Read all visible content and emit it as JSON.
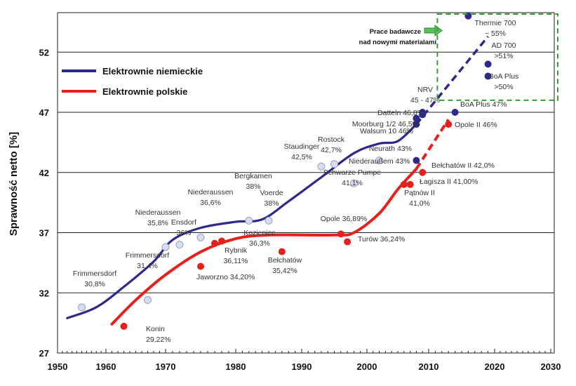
{
  "chart_data": {
    "type": "line",
    "title": "",
    "xlabel": "",
    "ylabel": "Sprawność netto [%]",
    "xlim": [
      1950,
      2030
    ],
    "ylim": [
      27,
      57
    ],
    "xticks": [
      1950,
      1960,
      1970,
      1980,
      1990,
      2000,
      2010,
      2020,
      2030
    ],
    "yticks": [
      27,
      32,
      37,
      42,
      47,
      52
    ],
    "grid": "horizontal",
    "legend_position": "top-left",
    "colors": {
      "german": "#2e2a8a",
      "polish": "#e8201c",
      "german_light_point": "#d8dcef",
      "research_box": "#3a9a3a"
    },
    "series": [
      {
        "name": "Elektrownie niemieckie",
        "curve": [
          [
            1952,
            29.9
          ],
          [
            1958,
            30.8
          ],
          [
            1963,
            32.5
          ],
          [
            1968,
            34.6
          ],
          [
            1971,
            36.4
          ],
          [
            1975,
            37.4
          ],
          [
            1980,
            37.9
          ],
          [
            1984,
            38.1
          ],
          [
            1988,
            39.6
          ],
          [
            1993,
            41.6
          ],
          [
            1998,
            43.6
          ],
          [
            2002,
            44.4
          ],
          [
            2005,
            44.6
          ],
          [
            2008,
            46.0
          ]
        ],
        "forecast": [
          [
            2008,
            46.0
          ],
          [
            2019,
            53.3
          ]
        ],
        "points": [
          {
            "year": 1955,
            "value": 30.8,
            "label": [
              "Frimmersdorf",
              "30,8%"
            ],
            "future": false
          },
          {
            "year": 1967,
            "value": 31.4,
            "label": [
              "Frimmersdorf",
              "31,4%"
            ],
            "future": false
          },
          {
            "year": 1970,
            "value": 35.8,
            "label": [
              "Niederaussen",
              "35,8%"
            ],
            "future": false
          },
          {
            "year": 1972,
            "value": 36.0,
            "label": [
              "Ensdorf",
              "36%"
            ],
            "future": false
          },
          {
            "year": 1975,
            "value": 36.6,
            "label": [
              "Niederaussen",
              "36,6%"
            ],
            "future": false
          },
          {
            "year": 1982,
            "value": 38.0,
            "label": [
              "Bergkamen",
              "38%"
            ],
            "future": false
          },
          {
            "year": 1985,
            "value": 38.0,
            "label": [
              "Voerde",
              "38%"
            ],
            "future": false
          },
          {
            "year": 1993,
            "value": 42.5,
            "label": [
              "Staudinger",
              "42,5%"
            ],
            "future": false
          },
          {
            "year": 1995,
            "value": 42.7,
            "label": [
              "Rostock",
              "42,7%"
            ],
            "future": false
          },
          {
            "year": 2002,
            "value": 43.0,
            "label": [
              "Niederaußem 43%"
            ],
            "future": false
          },
          {
            "year": 1998,
            "value": 41.1,
            "label": [
              "Schwarze Pumpe",
              "41,1%"
            ],
            "future": false
          },
          {
            "year": 2008,
            "value": 43.0,
            "label": [
              "Neurath 43%"
            ],
            "future": true
          },
          {
            "year": 2008,
            "value": 46.0,
            "label": [
              "Walsum 10 46%"
            ],
            "future": true
          },
          {
            "year": 2008,
            "value": 46.5,
            "label": [
              "Moorburg 1/2 46,5%"
            ],
            "future": true
          },
          {
            "year": 2009,
            "value": 46.8,
            "label": [
              "Datteln 46,8%"
            ],
            "future": true
          },
          {
            "year": 2009,
            "value": 47.0,
            "label": [
              "NRV",
              "45 - 47%"
            ],
            "future": true
          },
          {
            "year": 2014,
            "value": 47.0,
            "label": [
              "BoA Plus 47%"
            ],
            "future": true
          },
          {
            "year": 2019,
            "value": 50.0,
            "label": [
              "BoA Plus",
              ">50%"
            ],
            "future": true
          },
          {
            "year": 2019,
            "value": 51.0,
            "label": [
              "AD 700",
              ">51%"
            ],
            "future": true
          },
          {
            "year": 2016,
            "value": 55.0,
            "label": [
              "Thermie 700",
              "~ 55%"
            ],
            "future": true
          }
        ]
      },
      {
        "name": "Elektrownie polskie",
        "curve": [
          [
            1961,
            29.4
          ],
          [
            1965,
            31.4
          ],
          [
            1970,
            33.5
          ],
          [
            1975,
            35.4
          ],
          [
            1980,
            36.5
          ],
          [
            1985,
            36.8
          ],
          [
            1995,
            36.8
          ],
          [
            1998,
            37.0
          ],
          [
            2002,
            38.6
          ],
          [
            2005,
            40.6
          ],
          [
            2008,
            42.3
          ]
        ],
        "forecast": [
          [
            2008,
            42.3
          ],
          [
            2013,
            46.4
          ]
        ],
        "points": [
          {
            "year": 1963,
            "value": 29.22,
            "label": [
              "Konin",
              "29,22%"
            ]
          },
          {
            "year": 1975,
            "value": 34.2,
            "label": [
              "Jaworzno 34,20%"
            ]
          },
          {
            "year": 1977,
            "value": 36.11,
            "label": [
              "Rybnik",
              "36,11%"
            ]
          },
          {
            "year": 1978,
            "value": 36.3,
            "label": [
              "Kozienice",
              "36,3%"
            ]
          },
          {
            "year": 1987,
            "value": 35.42,
            "label": [
              "Bełchatów",
              "35,42%"
            ]
          },
          {
            "year": 1996,
            "value": 36.89,
            "label": [
              "Opole 36,89%"
            ]
          },
          {
            "year": 1997,
            "value": 36.24,
            "label": [
              "Turów 36,24%"
            ]
          },
          {
            "year": 2006,
            "value": 41.0,
            "label": [
              "Pątnów II",
              "41,0%"
            ]
          },
          {
            "year": 2007,
            "value": 41.0,
            "label": [
              "Łagisza II 41,00%"
            ]
          },
          {
            "year": 2009,
            "value": 42.0,
            "label": [
              "Bełchatów II 42,0%"
            ]
          },
          {
            "year": 2013,
            "value": 46.0,
            "label": [
              "Opole II 46%"
            ]
          }
        ]
      }
    ],
    "annotation": {
      "lines": [
        "Prace badawcze",
        "nad nowymi materialami"
      ],
      "box_years": [
        2011,
        2030
      ],
      "box_values": [
        48,
        57
      ]
    }
  }
}
